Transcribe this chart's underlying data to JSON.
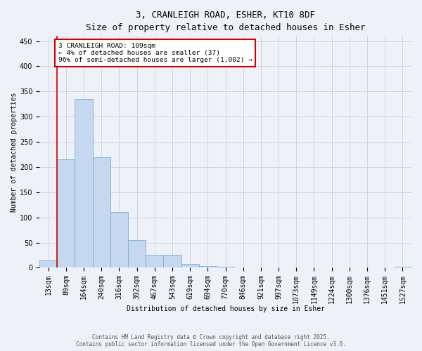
{
  "title_line1": "3, CRANLEIGH ROAD, ESHER, KT10 8DF",
  "title_line2": "Size of property relative to detached houses in Esher",
  "xlabel": "Distribution of detached houses by size in Esher",
  "ylabel": "Number of detached properties",
  "categories": [
    "13sqm",
    "89sqm",
    "164sqm",
    "240sqm",
    "316sqm",
    "392sqm",
    "467sqm",
    "543sqm",
    "619sqm",
    "694sqm",
    "770sqm",
    "846sqm",
    "921sqm",
    "997sqm",
    "1073sqm",
    "1149sqm",
    "1224sqm",
    "1300sqm",
    "1376sqm",
    "1451sqm",
    "1527sqm"
  ],
  "values": [
    15,
    215,
    335,
    220,
    110,
    55,
    26,
    26,
    8,
    3,
    2,
    1,
    1,
    0,
    0,
    0,
    0,
    0,
    0,
    0,
    2
  ],
  "bar_color": "#c5d8ef",
  "bar_edge_color": "#7aadd4",
  "property_line_x": 0.5,
  "annotation_text": "3 CRANLEIGH ROAD: 109sqm\n← 4% of detached houses are smaller (37)\n96% of semi-detached houses are larger (1,002) →",
  "annotation_box_edge_color": "#cc0000",
  "ylim": [
    0,
    460
  ],
  "yticks": [
    0,
    50,
    100,
    150,
    200,
    250,
    300,
    350,
    400,
    450
  ],
  "footer_line1": "Contains HM Land Registry data © Crown copyright and database right 2025.",
  "footer_line2": "Contains public sector information licensed under the Open Government Licence v3.0.",
  "bg_color": "#eef2f8",
  "grid_color": "#c8d0de",
  "title_fontsize": 9,
  "axis_fontsize": 7,
  "tick_fontsize": 7
}
